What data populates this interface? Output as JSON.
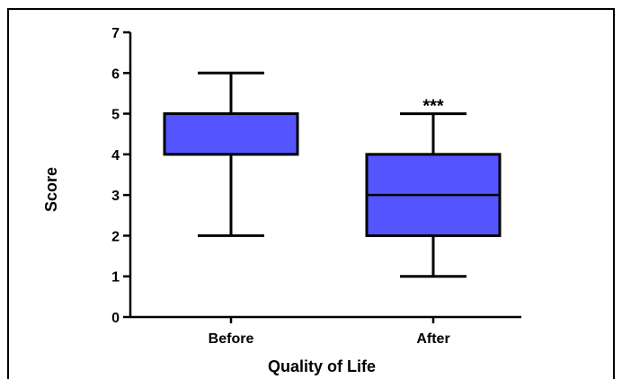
{
  "chart_data": {
    "type": "box",
    "title": "",
    "xlabel": "Quality of Life",
    "ylabel": "Score",
    "ylim": [
      0,
      7
    ],
    "yticks": [
      "0",
      "1",
      "2",
      "3",
      "4",
      "5",
      "6",
      "7"
    ],
    "categories": [
      "Before",
      "After"
    ],
    "boxes": [
      {
        "category": "Before",
        "whisker_low": 2,
        "q1": 4,
        "median": 4,
        "q3": 5,
        "whisker_high": 6
      },
      {
        "category": "After",
        "whisker_low": 1,
        "q1": 2,
        "median": 3,
        "q3": 4,
        "whisker_high": 5
      }
    ],
    "annotations": [
      {
        "category": "After",
        "text": "***"
      }
    ],
    "box_color": "#5555ff",
    "grid": false
  }
}
